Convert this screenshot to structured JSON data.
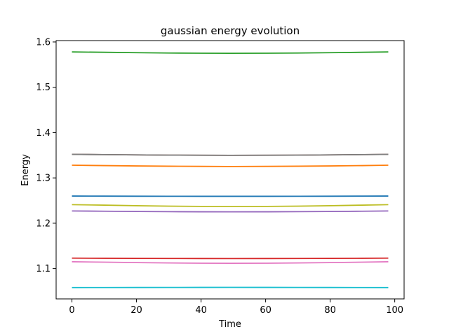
{
  "chart_data": {
    "type": "line",
    "title": "gaussian energy evolution",
    "xlabel": "Time",
    "ylabel": "Energy",
    "xlim": [
      -4.9,
      102.9
    ],
    "ylim": [
      1.033,
      1.603
    ],
    "xticks": [
      0,
      20,
      40,
      60,
      80,
      100
    ],
    "yticks": [
      1.1,
      1.2,
      1.3,
      1.4,
      1.5,
      1.6
    ],
    "grid": false,
    "legend": "none",
    "x": [
      0,
      10,
      20,
      30,
      40,
      49,
      60,
      70,
      80,
      90,
      98
    ],
    "series": [
      {
        "color": "#1f77b4",
        "values": [
          1.26,
          1.2598,
          1.2596,
          1.2595,
          1.2594,
          1.2594,
          1.2594,
          1.2595,
          1.2596,
          1.2598,
          1.26
        ]
      },
      {
        "color": "#ff7f0e",
        "values": [
          1.328,
          1.3272,
          1.3264,
          1.3258,
          1.3254,
          1.3252,
          1.3254,
          1.3258,
          1.3264,
          1.3272,
          1.328
        ]
      },
      {
        "color": "#2ca02c",
        "values": [
          1.578,
          1.5772,
          1.5763,
          1.5756,
          1.5752,
          1.575,
          1.5752,
          1.5756,
          1.5763,
          1.5772,
          1.578
        ]
      },
      {
        "color": "#d62728",
        "values": [
          1.123,
          1.1227,
          1.1224,
          1.1222,
          1.1221,
          1.122,
          1.1221,
          1.1222,
          1.1224,
          1.1227,
          1.123
        ]
      },
      {
        "color": "#9467bd",
        "values": [
          1.227,
          1.2265,
          1.2259,
          1.2255,
          1.2252,
          1.2251,
          1.2252,
          1.2255,
          1.2259,
          1.2265,
          1.227
        ]
      },
      {
        "color": "#8c564b",
        "values": [
          1.352,
          1.3514,
          1.3508,
          1.3503,
          1.35,
          1.3499,
          1.35,
          1.3503,
          1.3508,
          1.3514,
          1.352
        ]
      },
      {
        "color": "#e377c2",
        "values": [
          1.115,
          1.1141,
          1.1131,
          1.1123,
          1.1118,
          1.1116,
          1.1118,
          1.1123,
          1.1131,
          1.1141,
          1.115
        ]
      },
      {
        "color": "#7f7f7f",
        "values": [
          1.352,
          1.3514,
          1.3508,
          1.3503,
          1.35,
          1.3499,
          1.35,
          1.3503,
          1.3508,
          1.3514,
          1.352
        ]
      },
      {
        "color": "#bcbd22",
        "values": [
          1.241,
          1.2399,
          1.2387,
          1.2377,
          1.2371,
          1.2369,
          1.2371,
          1.2377,
          1.2387,
          1.2399,
          1.241
        ]
      },
      {
        "color": "#17becf",
        "values": [
          1.058,
          1.0581,
          1.0582,
          1.0583,
          1.0584,
          1.0585,
          1.0584,
          1.0583,
          1.0582,
          1.0581,
          1.058
        ]
      }
    ]
  }
}
